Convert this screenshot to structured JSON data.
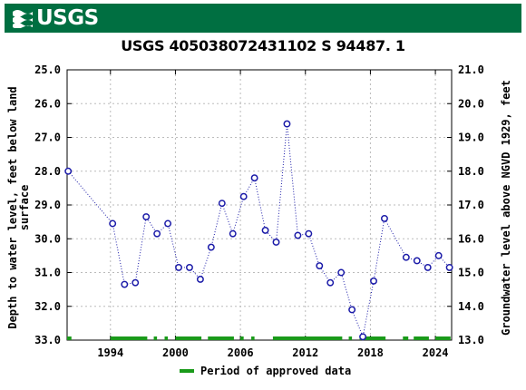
{
  "header": {
    "logo_text": "USGS",
    "color": "#006f41"
  },
  "chart_data": {
    "type": "scatter",
    "title": "USGS 405038072431102 S 94487. 1",
    "ylabel_left": "Depth to water level, feet below land surface",
    "ylabel_left_lines": [
      "Depth to water level, feet below land",
      "surface"
    ],
    "ylabel_right": "Groundwater level above NGVD 1929, feet",
    "left_axis": {
      "min": 25.0,
      "max": 33.0,
      "inverted": true,
      "ticks": [
        "25.0",
        "26.0",
        "27.0",
        "28.0",
        "29.0",
        "30.0",
        "31.0",
        "32.0",
        "33.0"
      ]
    },
    "right_axis": {
      "min": 13.0,
      "max": 21.0,
      "ticks": [
        "21.0",
        "20.0",
        "19.0",
        "18.0",
        "17.0",
        "16.0",
        "15.0",
        "14.0",
        "13.0"
      ]
    },
    "x_axis": {
      "min": 1990.0,
      "max": 2025.5,
      "ticks": [
        "1994",
        "2000",
        "2006",
        "2012",
        "2018",
        "2024"
      ]
    },
    "series": [
      {
        "marker": "circle",
        "line": "dotted",
        "color": "#1a1aa8",
        "points": [
          {
            "x": 1990.1,
            "y": 28.0
          },
          {
            "x": 1994.2,
            "y": 29.55
          },
          {
            "x": 1995.3,
            "y": 31.35
          },
          {
            "x": 1996.3,
            "y": 31.3
          },
          {
            "x": 1997.3,
            "y": 29.35
          },
          {
            "x": 1998.3,
            "y": 29.85
          },
          {
            "x": 1999.3,
            "y": 29.55
          },
          {
            "x": 2000.3,
            "y": 30.85
          },
          {
            "x": 2001.3,
            "y": 30.85
          },
          {
            "x": 2002.3,
            "y": 31.2
          },
          {
            "x": 2003.3,
            "y": 30.25
          },
          {
            "x": 2004.3,
            "y": 28.95
          },
          {
            "x": 2005.3,
            "y": 29.85
          },
          {
            "x": 2006.3,
            "y": 28.75
          },
          {
            "x": 2007.3,
            "y": 28.2
          },
          {
            "x": 2008.3,
            "y": 29.75
          },
          {
            "x": 2009.3,
            "y": 30.1
          },
          {
            "x": 2010.3,
            "y": 26.6
          },
          {
            "x": 2011.3,
            "y": 29.9
          },
          {
            "x": 2012.3,
            "y": 29.85
          },
          {
            "x": 2013.3,
            "y": 30.8
          },
          {
            "x": 2014.3,
            "y": 31.3
          },
          {
            "x": 2015.3,
            "y": 31.0
          },
          {
            "x": 2016.3,
            "y": 32.1
          },
          {
            "x": 2017.3,
            "y": 32.9
          },
          {
            "x": 2018.3,
            "y": 31.25
          },
          {
            "x": 2019.3,
            "y": 29.4
          },
          {
            "x": 2021.3,
            "y": 30.55
          },
          {
            "x": 2022.3,
            "y": 30.65
          },
          {
            "x": 2023.3,
            "y": 30.85
          },
          {
            "x": 2024.3,
            "y": 30.5
          },
          {
            "x": 2025.3,
            "y": 30.85
          }
        ]
      }
    ],
    "approved_periods": [
      [
        1990.0,
        1990.4
      ],
      [
        1994.0,
        1997.4
      ],
      [
        1998.0,
        1998.3
      ],
      [
        1999.0,
        1999.3
      ],
      [
        2000.0,
        2002.4
      ],
      [
        2003.0,
        2005.4
      ],
      [
        2006.0,
        2006.3
      ],
      [
        2007.0,
        2007.3
      ],
      [
        2009.0,
        2015.4
      ],
      [
        2016.0,
        2016.3
      ],
      [
        2017.0,
        2019.4
      ],
      [
        2021.0,
        2021.5
      ],
      [
        2022.0,
        2023.4
      ],
      [
        2024.0,
        2025.4
      ]
    ],
    "approved_color": "#1a9a1a",
    "legend": {
      "label": "Period of approved data",
      "placement": "bottom"
    }
  }
}
